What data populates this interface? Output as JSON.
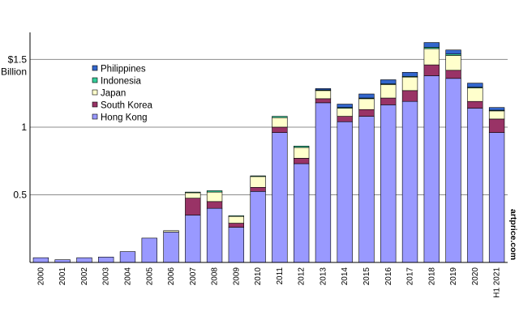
{
  "chart_data": {
    "type": "bar",
    "stacked": true,
    "categories": [
      "2000",
      "2001",
      "2002",
      "2003",
      "2004",
      "2005",
      "2006",
      "2007",
      "2008",
      "2009",
      "2010",
      "2011",
      "2012",
      "2013",
      "2014",
      "2015",
      "2016",
      "2017",
      "2018",
      "2019",
      "2020",
      "H1 2021"
    ],
    "ylim": [
      0,
      1.7
    ],
    "yticks": [
      {
        "value": 0.5,
        "label": "0.5"
      },
      {
        "value": 1,
        "label": "1"
      },
      {
        "value": 1.5,
        "label": "$1.5"
      }
    ],
    "ylabel_unit": "Billion",
    "grid": true,
    "legend_position": "top-left",
    "watermark": "artprice.com",
    "series": [
      {
        "name": "Hong Kong",
        "color": "#9999ff",
        "values": [
          0.035,
          0.02,
          0.035,
          0.04,
          0.08,
          0.18,
          0.225,
          0.35,
          0.4,
          0.26,
          0.525,
          0.96,
          0.73,
          1.18,
          1.04,
          1.08,
          1.165,
          1.19,
          1.38,
          1.36,
          1.14,
          0.96
        ]
      },
      {
        "name": "South Korea",
        "color": "#993366",
        "values": [
          0,
          0,
          0,
          0,
          0,
          0,
          0,
          0.125,
          0.05,
          0.03,
          0.03,
          0.04,
          0.04,
          0.03,
          0.04,
          0.05,
          0.05,
          0.08,
          0.08,
          0.06,
          0.05,
          0.1
        ]
      },
      {
        "name": "Japan",
        "color": "#ffffcc",
        "values": [
          0,
          0,
          0,
          0,
          0,
          0,
          0.01,
          0.04,
          0.07,
          0.05,
          0.08,
          0.07,
          0.08,
          0.06,
          0.06,
          0.08,
          0.1,
          0.1,
          0.12,
          0.11,
          0.1,
          0.06
        ]
      },
      {
        "name": "Indonesia",
        "color": "#33cc99",
        "values": [
          0,
          0,
          0,
          0,
          0,
          0,
          0,
          0.005,
          0.01,
          0.005,
          0.005,
          0.01,
          0.01,
          0.005,
          0.005,
          0.005,
          0.005,
          0.005,
          0.01,
          0.01,
          0.005,
          0.005
        ]
      },
      {
        "name": "Philippines",
        "color": "#3366cc",
        "values": [
          0,
          0,
          0,
          0,
          0,
          0,
          0,
          0,
          0,
          0,
          0,
          0,
          0,
          0.01,
          0.025,
          0.03,
          0.03,
          0.03,
          0.035,
          0.03,
          0.03,
          0.02
        ]
      }
    ],
    "legend_order": [
      "Philippines",
      "Indonesia",
      "Japan",
      "South Korea",
      "Hong Kong"
    ]
  }
}
